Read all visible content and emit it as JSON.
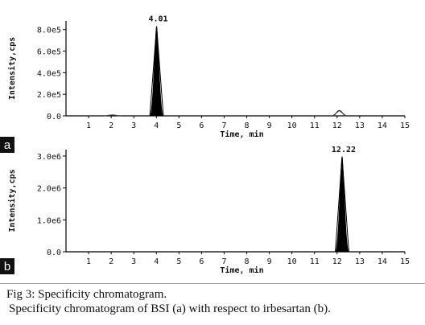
{
  "chart_data": [
    {
      "type": "line",
      "panel_label": "a",
      "ylabel": "Intensity,cps",
      "xlabel": "Time, min",
      "xlim": [
        0,
        15
      ],
      "x_ticks": [
        "1",
        "2",
        "3",
        "4",
        "5",
        "6",
        "7",
        "8",
        "9",
        "10",
        "11",
        "12",
        "13",
        "14",
        "15"
      ],
      "ylim": [
        0,
        850000
      ],
      "y_ticks": [
        {
          "value": 0,
          "label": "0.0"
        },
        {
          "value": 200000,
          "label": "2.0e5"
        },
        {
          "value": 400000,
          "label": "4.0e5"
        },
        {
          "value": 600000,
          "label": "6.0e5"
        },
        {
          "value": 800000,
          "label": "8.0e5"
        }
      ],
      "grid": false,
      "peak_label": "4.01",
      "peaks": [
        {
          "x": 4.01,
          "y": 830000,
          "filled": true,
          "width": 0.3
        },
        {
          "x": 12.1,
          "y": 50000,
          "filled": false,
          "width": 0.28
        },
        {
          "x": 2.05,
          "y": 8000,
          "filled": false,
          "width": 0.35
        }
      ]
    },
    {
      "type": "line",
      "panel_label": "b",
      "ylabel": "Intensity,cps",
      "xlabel": "Time, min",
      "xlim": [
        0,
        15
      ],
      "x_ticks": [
        "1",
        "2",
        "3",
        "4",
        "5",
        "6",
        "7",
        "8",
        "9",
        "10",
        "11",
        "12",
        "13",
        "14",
        "15"
      ],
      "ylim": [
        0,
        3100000
      ],
      "y_ticks": [
        {
          "value": 0,
          "label": "0.0"
        },
        {
          "value": 1000000,
          "label": "1.0e6"
        },
        {
          "value": 2000000,
          "label": "2.0e6"
        },
        {
          "value": 3000000,
          "label": "3.0e6"
        }
      ],
      "grid": false,
      "peak_label": "12.22",
      "peaks": [
        {
          "x": 12.22,
          "y": 2980000,
          "filled": true,
          "width": 0.3
        }
      ]
    }
  ],
  "caption": {
    "line1": "Fig 3: Specificity chromatogram.",
    "line2": "Specificity chromatogram of BSI (a) with respect to irbesartan (b)."
  },
  "colors": {
    "trace": "#000000",
    "badge": "#111111"
  }
}
